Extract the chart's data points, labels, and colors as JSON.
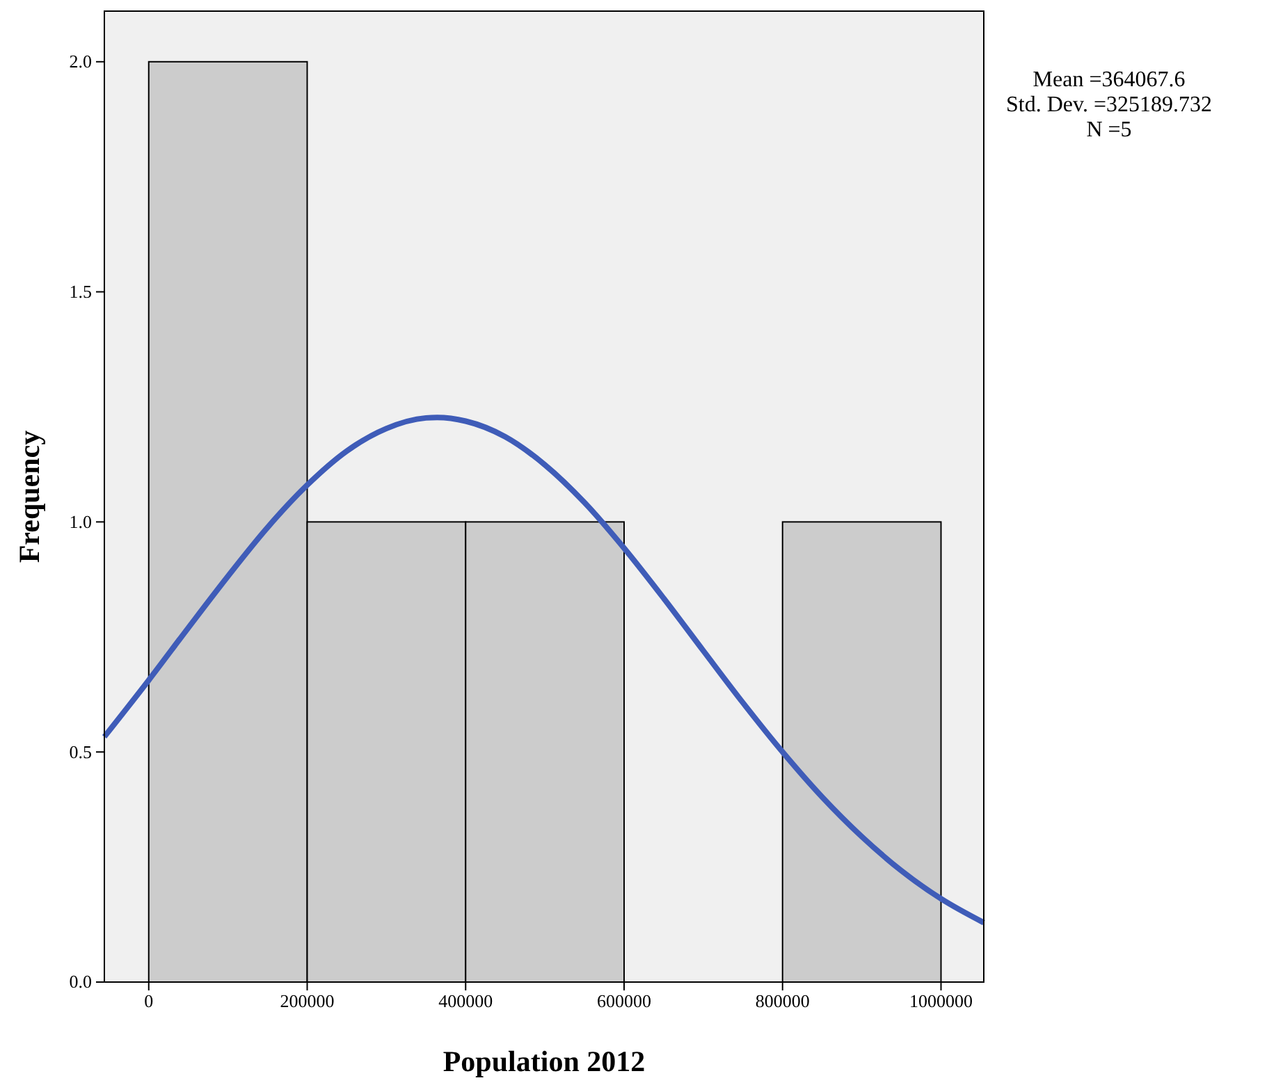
{
  "chart_data": {
    "type": "histogram",
    "xlabel": "Population 2012",
    "ylabel": "Frequency",
    "xlim": [
      -56000,
      1054000
    ],
    "ylim": [
      0,
      2.11
    ],
    "xticks": [
      0,
      200000,
      400000,
      600000,
      800000,
      1000000
    ],
    "yticks": [
      {
        "value": 0,
        "label": "0.0"
      },
      {
        "value": 0.5,
        "label": "0.5"
      },
      {
        "value": 1,
        "label": "1.0"
      },
      {
        "value": 1.5,
        "label": "1.5"
      },
      {
        "value": 2,
        "label": "2.0"
      }
    ],
    "grid": false,
    "annotations": [
      "Mean =364067.6",
      "Std. Dev. =325189.732",
      "N =5"
    ],
    "series": [
      {
        "color": "#cccccc",
        "bins": [
          0,
          200000,
          400000,
          600000,
          800000,
          1000000
        ],
        "values": [
          2,
          1,
          1,
          0,
          1
        ]
      },
      {
        "type": "line",
        "color": "#3f5cb8",
        "x": [
          -56000,
          0,
          50000,
          100000,
          150000,
          200000,
          250000,
          300000,
          350000,
          364068,
          400000,
          450000,
          500000,
          550000,
          600000,
          650000,
          700000,
          750000,
          800000,
          850000,
          900000,
          950000,
          1000000,
          1054000
        ],
        "values": [
          0.533,
          0.656,
          0.77,
          0.882,
          0.988,
          1.08,
          1.154,
          1.203,
          1.226,
          1.227,
          1.219,
          1.185,
          1.124,
          1.042,
          0.943,
          0.834,
          0.72,
          0.607,
          0.5,
          0.402,
          0.316,
          0.242,
          0.181,
          0.129
        ]
      }
    ]
  }
}
